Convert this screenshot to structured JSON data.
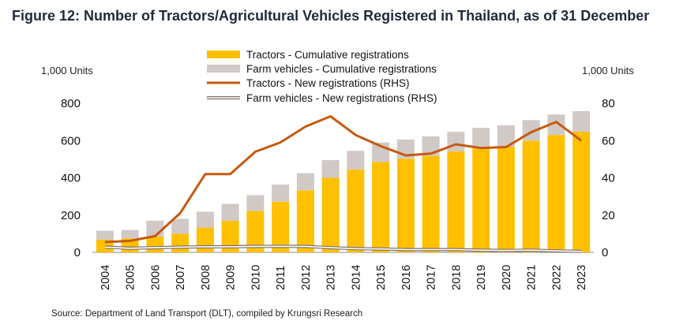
{
  "title": "Figure 12: Number of Tractors/Agricultural Vehicles Registered in Thailand, as of 31 December",
  "left_unit": "1,000 Units",
  "right_unit": "1,000 Units",
  "source": "Source: Department of Land Transport (DLT), compiled by Krungsri Research",
  "colors": {
    "tractors_cum": "#FFC000",
    "farm_cum": "#D0C9C6",
    "tractors_new": "#C55A11",
    "farm_new": "#7F6F68"
  },
  "chart_data": {
    "type": "bar",
    "categories": [
      "2004",
      "2005",
      "2006",
      "2007",
      "2008",
      "2009",
      "2010",
      "2011",
      "2012",
      "2013",
      "2014",
      "2015",
      "2016",
      "2017",
      "2018",
      "2019",
      "2020",
      "2021",
      "2022",
      "2023"
    ],
    "ylim": [
      0,
      800
    ],
    "y2lim": [
      0,
      80
    ],
    "yticks": [
      "0",
      "200",
      "400",
      "600",
      "800"
    ],
    "y2ticks": [
      "0",
      "20",
      "40",
      "60",
      "80"
    ],
    "legend_position": "top",
    "series": [
      {
        "name": "Tractors - Cumulative registrations",
        "type": "bar",
        "axis": "left",
        "values": [
          68,
          75,
          85,
          100,
          133,
          170,
          222,
          272,
          333,
          400,
          445,
          485,
          503,
          518,
          542,
          558,
          567,
          600,
          630,
          648
        ]
      },
      {
        "name": "Farm vehicles - Cumulative registrations",
        "type": "bar",
        "axis": "left",
        "values": [
          48,
          45,
          85,
          80,
          85,
          90,
          85,
          92,
          92,
          95,
          100,
          105,
          103,
          105,
          105,
          110,
          115,
          110,
          110,
          110
        ]
      },
      {
        "name": "Tractors - New registrations (RHS)",
        "type": "line",
        "axis": "right",
        "values": [
          5.5,
          6.2,
          8.7,
          21,
          42,
          42,
          54,
          59,
          67.5,
          73,
          63,
          57,
          52,
          53,
          58,
          56,
          56.5,
          64.5,
          70,
          60
        ]
      },
      {
        "name": "Farm vehicles - New registrations (RHS)",
        "type": "line",
        "axis": "right",
        "values": [
          2.8,
          2.2,
          2.5,
          2.8,
          3,
          3,
          3.2,
          3.2,
          3.2,
          2.5,
          2,
          1.8,
          1.5,
          1.5,
          1.5,
          1.2,
          1,
          1.2,
          0.8,
          0.5
        ]
      }
    ]
  }
}
